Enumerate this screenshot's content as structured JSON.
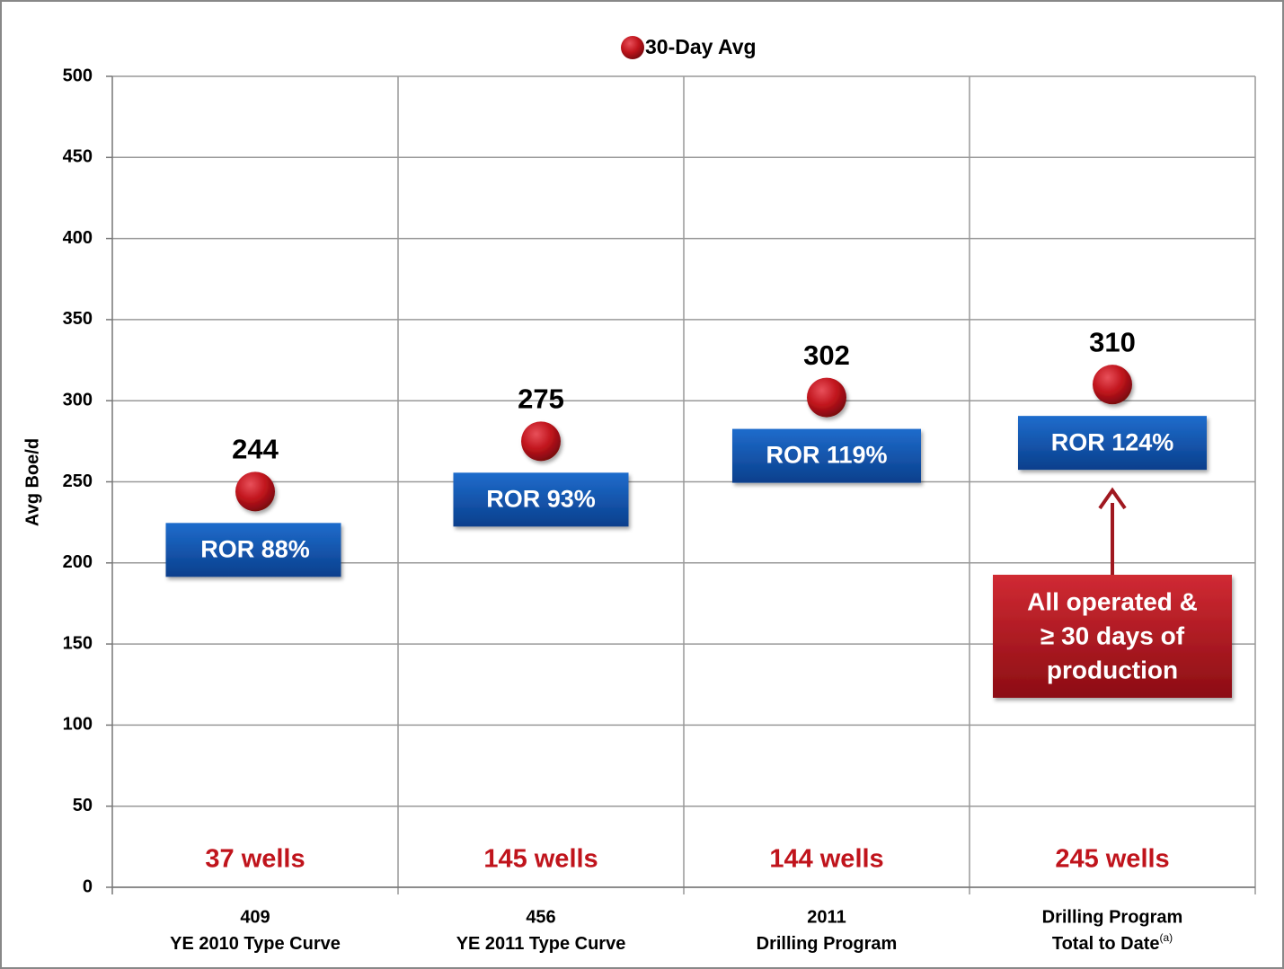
{
  "chart_data": {
    "type": "scatter",
    "y_axis_label": "Avg Boe/d",
    "categories": [
      [
        "409",
        "YE 2010 Type Curve"
      ],
      [
        "456",
        "YE 2011 Type Curve"
      ],
      [
        "2011",
        "Drilling Program"
      ],
      [
        "Drilling Program",
        "Total to Date"
      ]
    ],
    "category_notes": [
      null,
      null,
      null,
      "(a)"
    ],
    "series": [
      {
        "name": "30-Day Avg",
        "color": "#c0141c",
        "values": [
          244,
          275,
          302,
          310
        ]
      }
    ],
    "ror_labels": [
      "ROR 88%",
      "ROR 93%",
      "ROR 119%",
      "ROR 124%"
    ],
    "well_labels": [
      "37 wells",
      "145 wells",
      "144 wells",
      "245 wells"
    ],
    "callout": [
      "All operated &",
      "≥ 30 days of",
      "production"
    ],
    "ylim": [
      0,
      500
    ],
    "yticks": [
      0,
      50,
      100,
      150,
      200,
      250,
      300,
      350,
      400,
      450,
      500
    ],
    "grid": true,
    "legend": "top"
  }
}
